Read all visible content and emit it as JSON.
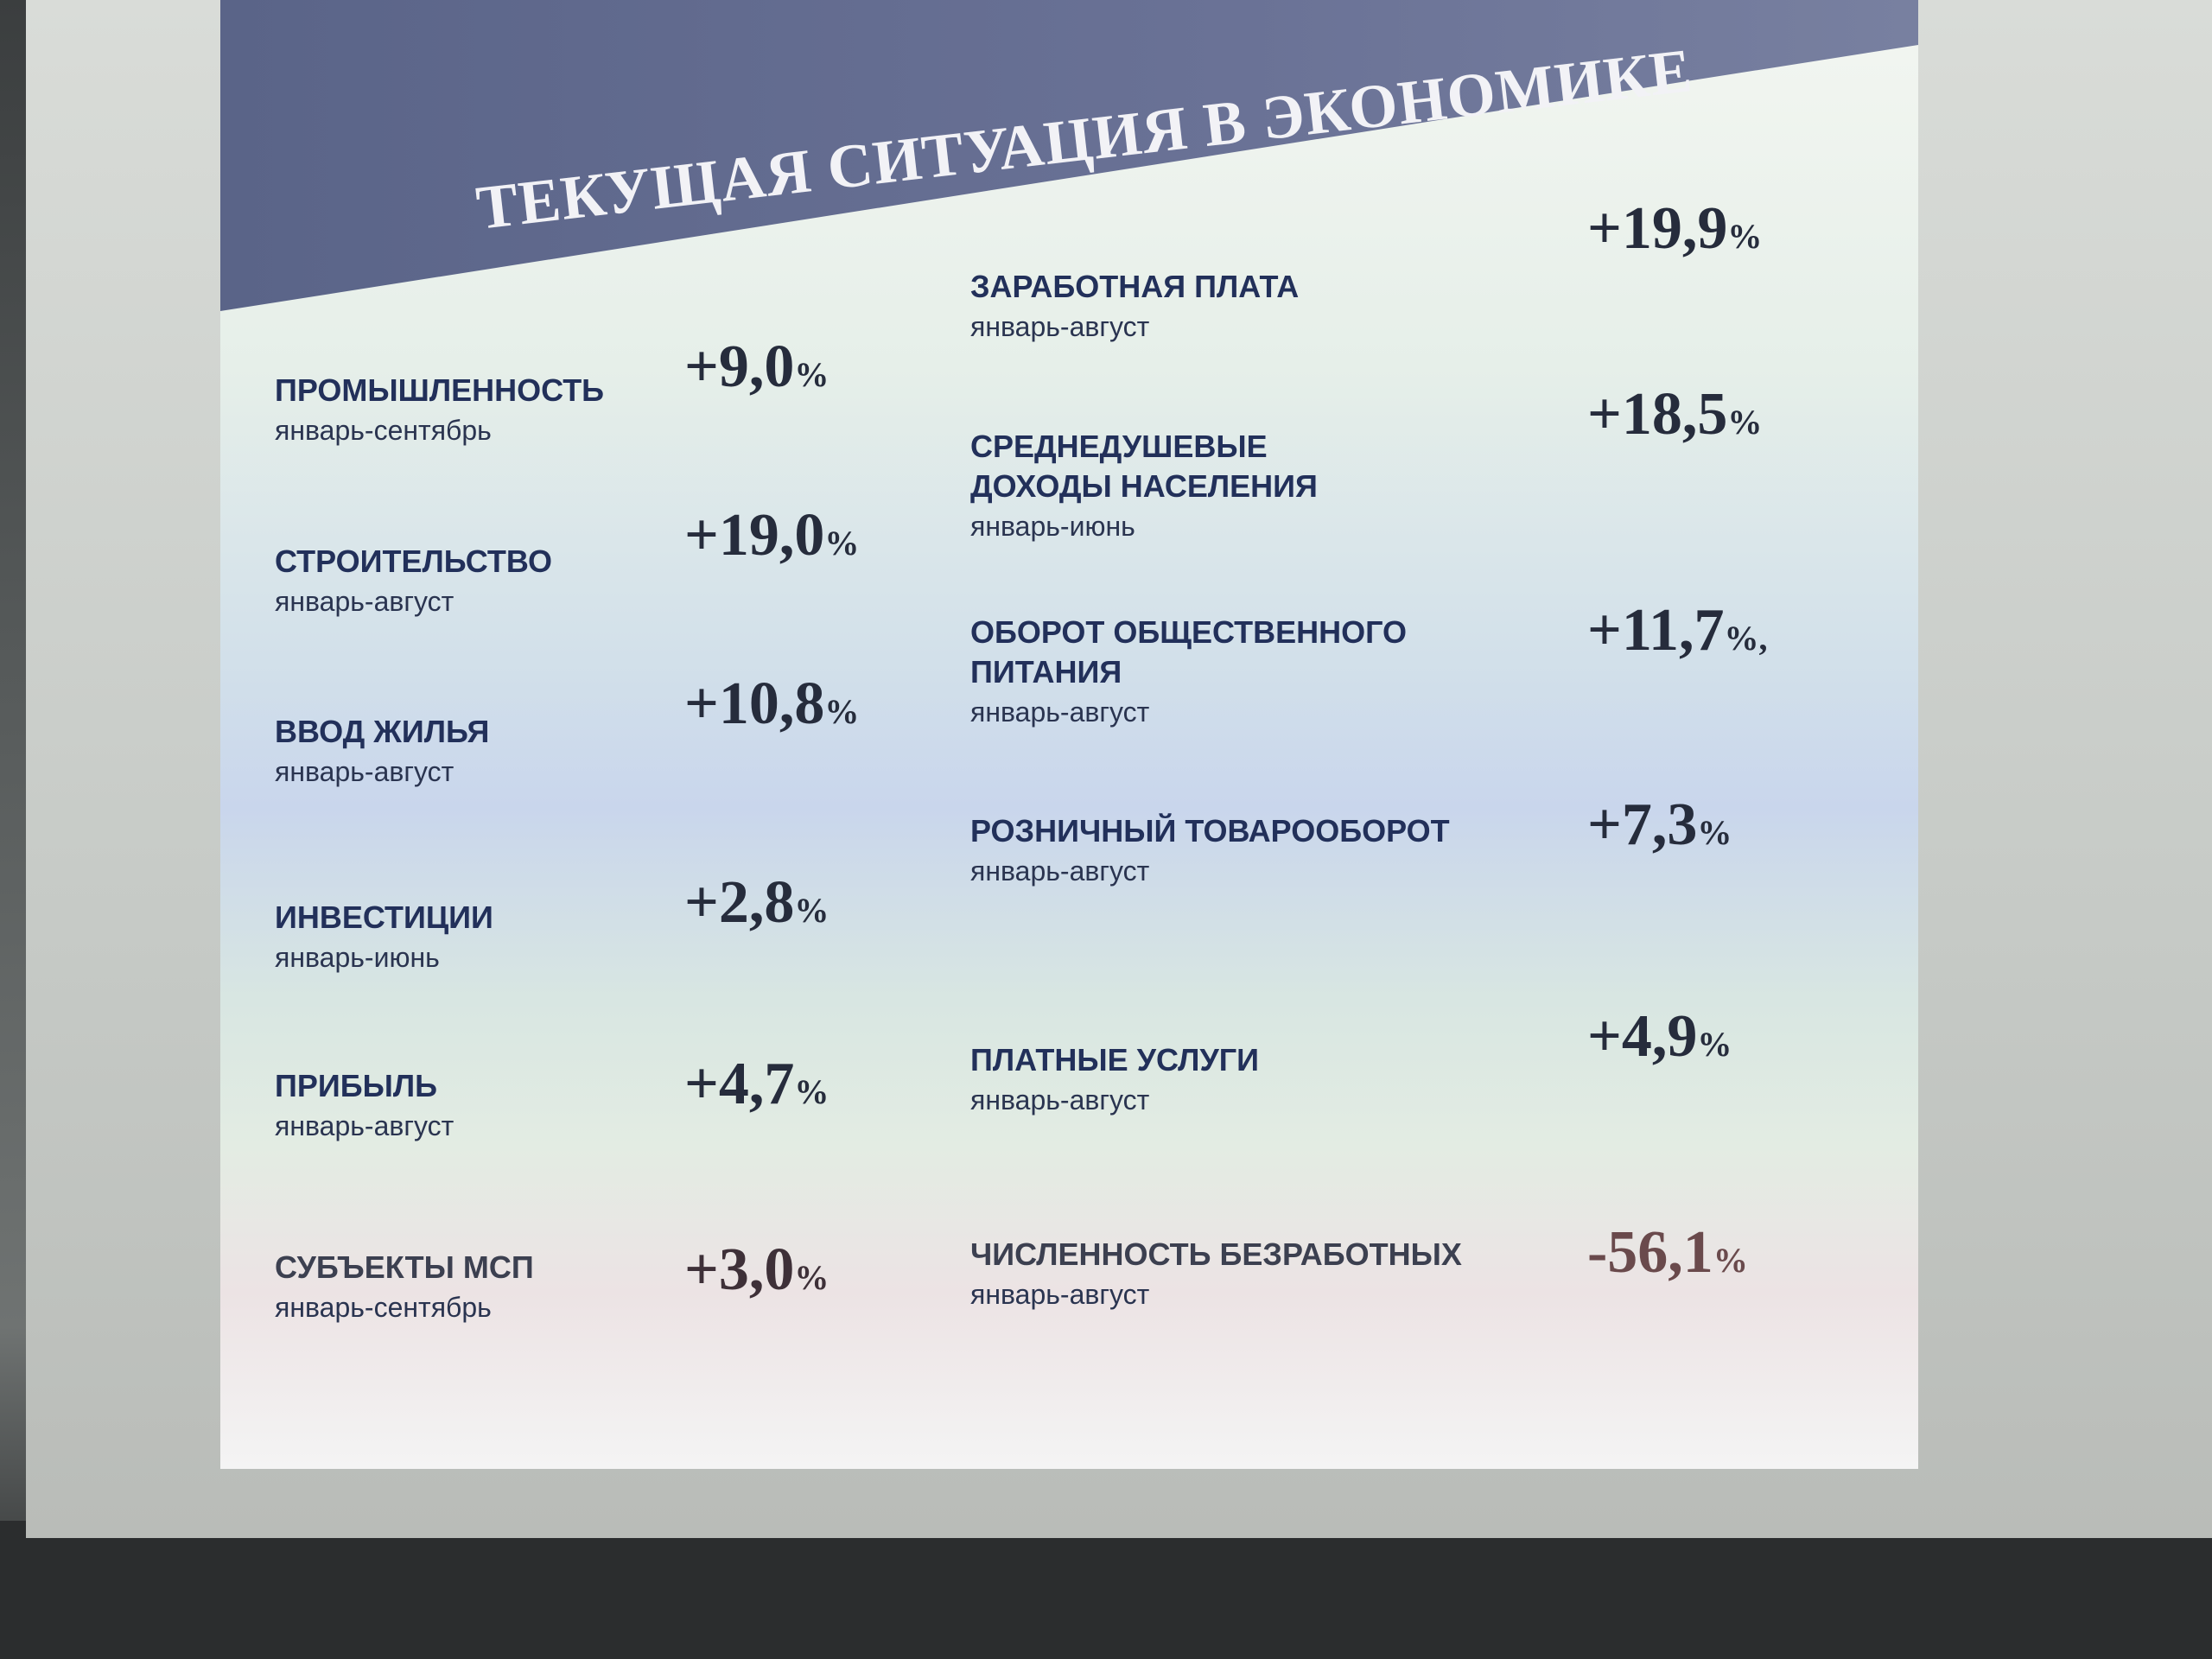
{
  "title": "ТЕКУЩАЯ СИТУАЦИЯ В ЭКОНОМИКЕ",
  "left": [
    {
      "label": [
        "ПРОМЫШЛЕННОСТЬ"
      ],
      "period": "январь-сентябрь",
      "value": "+9,0",
      "unit": "%"
    },
    {
      "label": [
        "СТРОИТЕЛЬСТВО"
      ],
      "period": "январь-август",
      "value": "+19,0",
      "unit": "%"
    },
    {
      "label": [
        "ВВОД ЖИЛЬЯ"
      ],
      "period": "январь-август",
      "value": "+10,8",
      "unit": "%"
    },
    {
      "label": [
        "ИНВЕСТИЦИИ"
      ],
      "period": "январь-июнь",
      "value": "+2,8",
      "unit": "%"
    },
    {
      "label": [
        "ПРИБЫЛЬ"
      ],
      "period": "январь-август",
      "value": "+4,7",
      "unit": "%"
    },
    {
      "label": [
        "СУБЪЕКТЫ МСП"
      ],
      "period": "январь-сентябрь",
      "value": "+3,0",
      "unit": "%"
    }
  ],
  "right": [
    {
      "label": [
        "ЗАРАБОТНАЯ ПЛАТА"
      ],
      "period": "январь-август",
      "value": "+19,9",
      "unit": "%"
    },
    {
      "label": [
        "СРЕДНЕДУШЕВЫЕ",
        "ДОХОДЫ НАСЕЛЕНИЯ"
      ],
      "period": "январь-июнь",
      "value": "+18,5",
      "unit": "%"
    },
    {
      "label": [
        "ОБОРОТ ОБЩЕСТВЕННОГО",
        "ПИТАНИЯ"
      ],
      "period": "январь-август",
      "value": "+11,7",
      "unit": "%,"
    },
    {
      "label": [
        "РОЗНИЧНЫЙ ТОВАРООБОРОТ"
      ],
      "period": "январь-август",
      "value": "+7,3",
      "unit": "%"
    },
    {
      "label": [
        "ПЛАТНЫЕ УСЛУГИ"
      ],
      "period": "январь-август",
      "value": "+4,9",
      "unit": "%"
    },
    {
      "label": [
        "ЧИСЛЕННОСТЬ БЕЗРАБОТНЫХ"
      ],
      "period": "январь-август",
      "value": "-56,1",
      "unit": "%"
    }
  ]
}
